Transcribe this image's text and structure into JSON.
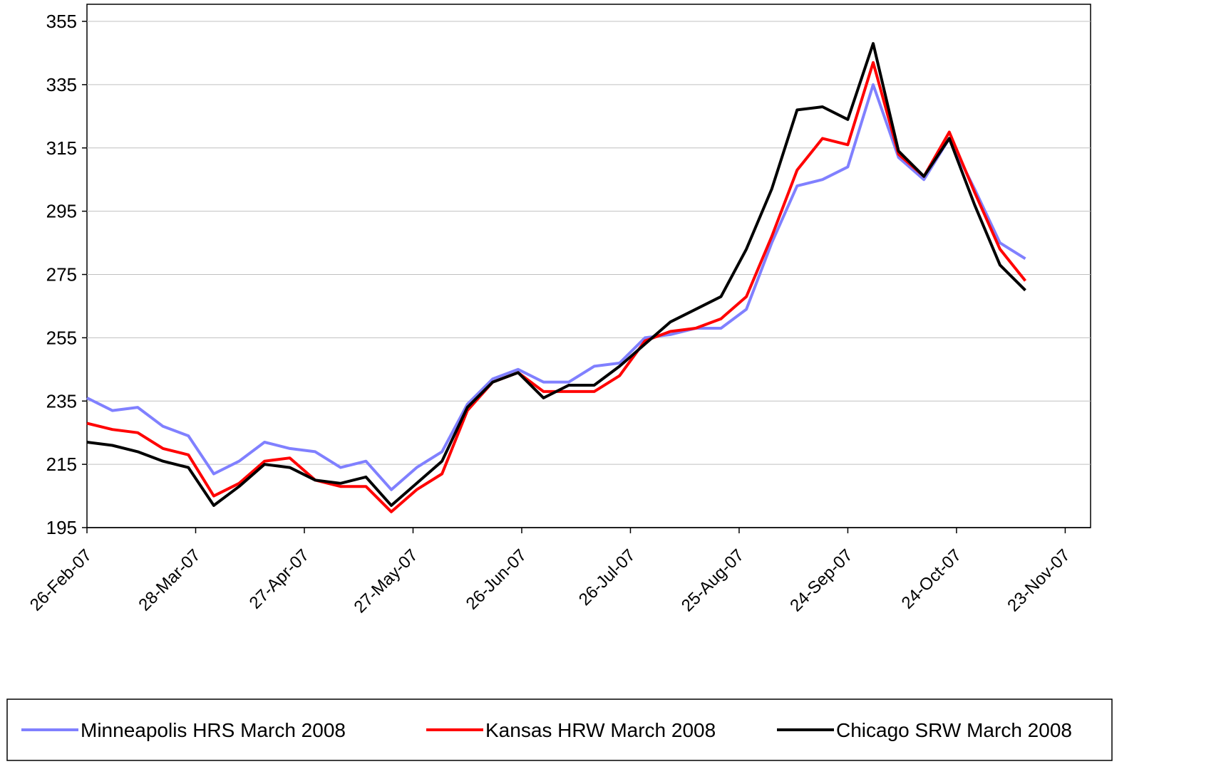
{
  "chart_data": {
    "type": "line",
    "x": [
      "2007-02-26",
      "2007-03-05",
      "2007-03-12",
      "2007-03-19",
      "2007-03-26",
      "2007-04-02",
      "2007-04-09",
      "2007-04-16",
      "2007-04-23",
      "2007-04-30",
      "2007-05-07",
      "2007-05-14",
      "2007-05-21",
      "2007-05-28",
      "2007-06-04",
      "2007-06-11",
      "2007-06-18",
      "2007-06-25",
      "2007-07-02",
      "2007-07-09",
      "2007-07-16",
      "2007-07-23",
      "2007-07-30",
      "2007-08-06",
      "2007-08-13",
      "2007-08-20",
      "2007-08-27",
      "2007-09-03",
      "2007-09-10",
      "2007-09-17",
      "2007-09-24",
      "2007-10-01",
      "2007-10-08",
      "2007-10-15",
      "2007-10-22",
      "2007-10-29",
      "2007-11-05",
      "2007-11-12"
    ],
    "series": [
      {
        "name": "Minneapolis HRS March 2008",
        "color": "#8080ff",
        "values": [
          236,
          232,
          233,
          227,
          224,
          212,
          216,
          222,
          220,
          219,
          214,
          216,
          207,
          214,
          219,
          234,
          242,
          245,
          241,
          241,
          246,
          247,
          255,
          256,
          258,
          258,
          264,
          285,
          303,
          305,
          309,
          335,
          312,
          305,
          318,
          302,
          285,
          280
        ]
      },
      {
        "name": "Kansas HRW March 2008",
        "color": "#ff0000",
        "values": [
          228,
          226,
          225,
          220,
          218,
          205,
          209,
          216,
          217,
          210,
          208,
          208,
          200,
          207,
          212,
          232,
          241,
          244,
          238,
          238,
          238,
          243,
          254,
          257,
          258,
          261,
          268,
          287,
          308,
          318,
          316,
          342,
          313,
          306,
          320,
          301,
          283,
          273
        ]
      },
      {
        "name": "Chicago SRW March 2008",
        "color": "#000000",
        "values": [
          222,
          221,
          219,
          216,
          214,
          202,
          208,
          215,
          214,
          210,
          209,
          211,
          202,
          209,
          216,
          233,
          241,
          244,
          236,
          240,
          240,
          246,
          253,
          260,
          264,
          268,
          283,
          302,
          327,
          328,
          324,
          348,
          314,
          306,
          318,
          297,
          278,
          270
        ]
      }
    ],
    "xlim": [
      "2007-02-26",
      "2007-11-30"
    ],
    "xticks": [
      {
        "value": "2007-02-26",
        "label": "26-Feb-07"
      },
      {
        "value": "2007-03-28",
        "label": "28-Mar-07"
      },
      {
        "value": "2007-04-27",
        "label": "27-Apr-07"
      },
      {
        "value": "2007-05-27",
        "label": "27-May-07"
      },
      {
        "value": "2007-06-26",
        "label": "26-Jun-07"
      },
      {
        "value": "2007-07-26",
        "label": "26-Jul-07"
      },
      {
        "value": "2007-08-25",
        "label": "25-Aug-07"
      },
      {
        "value": "2007-09-24",
        "label": "24-Sep-07"
      },
      {
        "value": "2007-10-24",
        "label": "24-Oct-07"
      },
      {
        "value": "2007-11-23",
        "label": "23-Nov-07"
      }
    ],
    "ylim": [
      195,
      355
    ],
    "yticks": [
      195,
      215,
      235,
      255,
      275,
      295,
      315,
      335,
      355
    ],
    "grid": true,
    "legend": "bottom"
  }
}
